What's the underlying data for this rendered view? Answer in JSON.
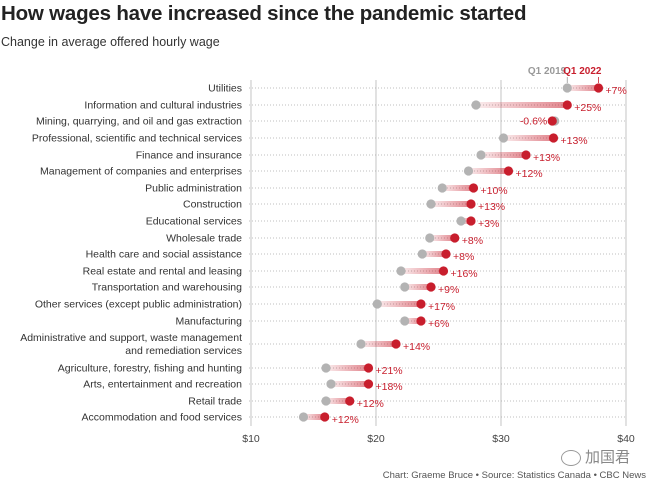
{
  "title": "How wages have increased since the pandemic started",
  "subtitle": "Change in average offered hourly wage",
  "footer": "Chart: Graeme Bruce • Source: Statistics Canada • CBC News",
  "watermark": "加国君",
  "colors": {
    "q1_2019": "#b3b3b3",
    "q1_2022": "#c81e2d",
    "label_2022": "#c81e2d",
    "label_2019": "#999999",
    "grid": "#b5b5b5",
    "dots": "#aaaaaa"
  },
  "chart_data": {
    "type": "dot",
    "xlim": [
      10,
      40
    ],
    "x_ticks": [
      "$10",
      "$20",
      "$30",
      "$40"
    ],
    "x_tick_values": [
      10,
      20,
      30,
      40
    ],
    "series_names": [
      "Q1 2019",
      "Q1 2022"
    ],
    "rows": [
      {
        "category": "Utilities",
        "q1_2019": 35.3,
        "q1_2022": 37.8,
        "change": "+7%"
      },
      {
        "category": "Information and cultural industries",
        "q1_2019": 28.0,
        "q1_2022": 35.3,
        "change": "+25%"
      },
      {
        "category": "Mining, quarrying, and oil and gas extraction",
        "q1_2019": 34.3,
        "q1_2022": 34.1,
        "change": "-0.6%"
      },
      {
        "category": "Professional, scientific and technical services",
        "q1_2019": 30.2,
        "q1_2022": 34.2,
        "change": "+13%"
      },
      {
        "category": "Finance and insurance",
        "q1_2019": 28.4,
        "q1_2022": 32.0,
        "change": "+13%"
      },
      {
        "category": "Management of companies and enterprises",
        "q1_2019": 27.4,
        "q1_2022": 30.6,
        "change": "+12%"
      },
      {
        "category": "Public administration",
        "q1_2019": 25.3,
        "q1_2022": 27.8,
        "change": "+10%"
      },
      {
        "category": "Construction",
        "q1_2019": 24.4,
        "q1_2022": 27.6,
        "change": "+13%"
      },
      {
        "category": "Educational services",
        "q1_2019": 26.8,
        "q1_2022": 27.6,
        "change": "+3%"
      },
      {
        "category": "Wholesale trade",
        "q1_2019": 24.3,
        "q1_2022": 26.3,
        "change": "+8%"
      },
      {
        "category": "Health care and social assistance",
        "q1_2019": 23.7,
        "q1_2022": 25.6,
        "change": "+8%"
      },
      {
        "category": "Real estate and rental and leasing",
        "q1_2019": 22.0,
        "q1_2022": 25.4,
        "change": "+16%"
      },
      {
        "category": "Transportation and warehousing",
        "q1_2019": 22.3,
        "q1_2022": 24.4,
        "change": "+9%"
      },
      {
        "category": "Other services (except public administration)",
        "q1_2019": 20.1,
        "q1_2022": 23.6,
        "change": "+17%"
      },
      {
        "category": "Manufacturing",
        "q1_2019": 22.3,
        "q1_2022": 23.6,
        "change": "+6%"
      },
      {
        "category": [
          "Administrative and support, waste management",
          "and remediation services"
        ],
        "q1_2019": 18.8,
        "q1_2022": 21.6,
        "change": "+14%"
      },
      {
        "category": "Agriculture, forestry, fishing and hunting",
        "q1_2019": 16.0,
        "q1_2022": 19.4,
        "change": "+21%"
      },
      {
        "category": "Arts, entertainment and recreation",
        "q1_2019": 16.4,
        "q1_2022": 19.4,
        "change": "+18%"
      },
      {
        "category": "Retail trade",
        "q1_2019": 16.0,
        "q1_2022": 17.9,
        "change": "+12%"
      },
      {
        "category": "Accommodation and food services",
        "q1_2019": 14.2,
        "q1_2022": 15.9,
        "change": "+12%"
      }
    ]
  }
}
